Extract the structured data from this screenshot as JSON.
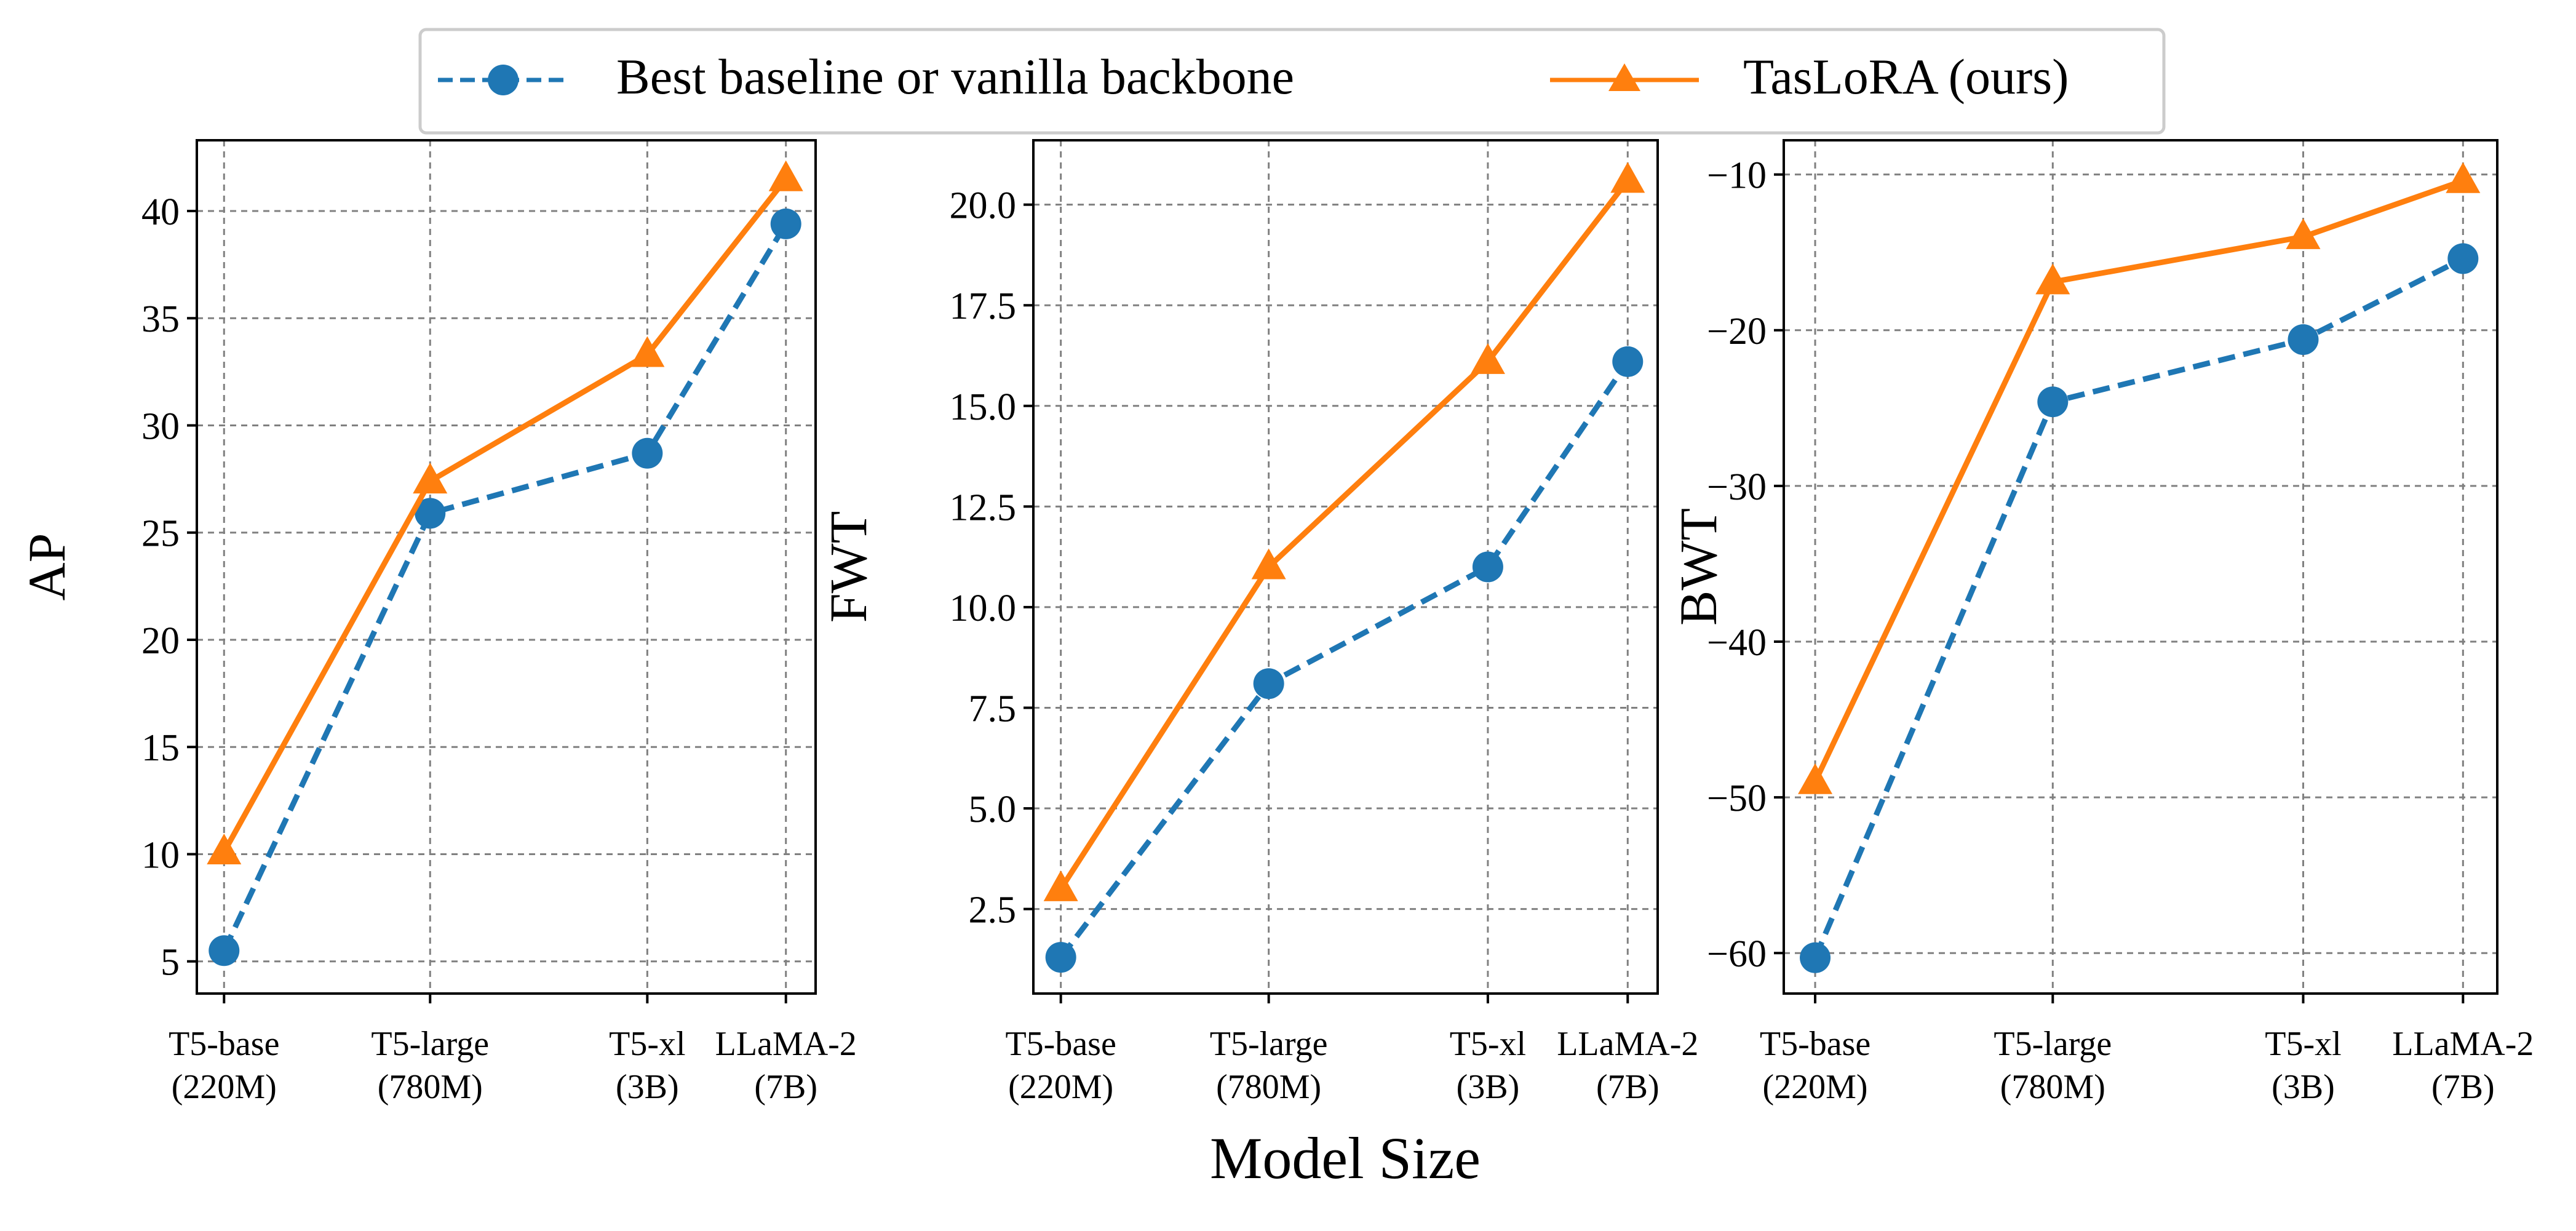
{
  "legend": {
    "entries": [
      {
        "label": "Best baseline or vanilla backbone",
        "color": "#1f77b4",
        "style": "dashed",
        "marker": "circle"
      },
      {
        "label": "TasLoRA (ours)",
        "color": "#ff7f0e",
        "style": "solid",
        "marker": "triangle"
      }
    ],
    "placement": "top-center"
  },
  "xlabel": "Model Size",
  "chart_data": [
    {
      "type": "line",
      "ylabel": "AP",
      "categories": [
        [
          "T5-base",
          "(220M)"
        ],
        [
          "T5-large",
          "(780M)"
        ],
        [
          "T5-xl",
          "(3B)"
        ],
        [
          "LLaMA-2",
          "(7B)"
        ]
      ],
      "x": [
        0.22,
        0.78,
        3.0,
        7.0
      ],
      "yticks": [
        5,
        10,
        15,
        20,
        25,
        30,
        35,
        40
      ],
      "ylim": [
        3.5,
        43.3
      ],
      "grid": true,
      "series": [
        {
          "name": "Best baseline or vanilla backbone",
          "values": [
            5.5,
            25.9,
            28.7,
            39.4
          ]
        },
        {
          "name": "TasLoRA (ours)",
          "values": [
            10.1,
            27.4,
            33.3,
            41.5
          ]
        }
      ]
    },
    {
      "type": "line",
      "ylabel": "FWT",
      "categories": [
        [
          "T5-base",
          "(220M)"
        ],
        [
          "T5-large",
          "(780M)"
        ],
        [
          "T5-xl",
          "(3B)"
        ],
        [
          "LLaMA-2",
          "(7B)"
        ]
      ],
      "x": [
        0.22,
        0.78,
        3.0,
        7.0
      ],
      "yticks": [
        2.5,
        5.0,
        7.5,
        10.0,
        12.5,
        15.0,
        17.5,
        20.0
      ],
      "ylim": [
        0.4,
        21.6
      ],
      "grid": true,
      "series": [
        {
          "name": "Best baseline or vanilla backbone",
          "values": [
            1.3,
            8.1,
            11.0,
            16.1
          ]
        },
        {
          "name": "TasLoRA (ours)",
          "values": [
            3.0,
            11.0,
            16.1,
            20.6
          ]
        }
      ]
    },
    {
      "type": "line",
      "ylabel": "BWT",
      "categories": [
        [
          "T5-base",
          "(220M)"
        ],
        [
          "T5-large",
          "(780M)"
        ],
        [
          "T5-xl",
          "(3B)"
        ],
        [
          "LLaMA-2",
          "(7B)"
        ]
      ],
      "x": [
        0.22,
        0.78,
        3.0,
        7.0
      ],
      "yticks": [
        -60,
        -50,
        -40,
        -30,
        -20,
        -10
      ],
      "ylim": [
        -62.6,
        -7.8
      ],
      "grid": true,
      "series": [
        {
          "name": "Best baseline or vanilla backbone",
          "values": [
            -60.3,
            -24.6,
            -20.6,
            -15.4
          ]
        },
        {
          "name": "TasLoRA (ours)",
          "values": [
            -49.0,
            -16.9,
            -14.0,
            -10.4
          ]
        }
      ]
    }
  ]
}
